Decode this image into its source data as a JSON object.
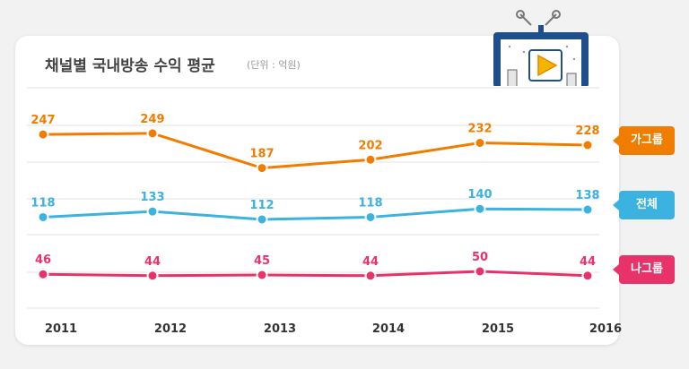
{
  "header": {
    "title": "채널별 국내방송 수익 평균",
    "unit_note": "(단위 : 억원)"
  },
  "icon": "tv-broadcast-icon",
  "chart_data": {
    "type": "line",
    "title": "채널별 국내방송 수익 평균",
    "subtitle": "(단위 : 억원)",
    "categories": [
      "2011",
      "2012",
      "2013",
      "2014",
      "2015",
      "2016"
    ],
    "series": [
      {
        "name": "가그룹",
        "color": "#f07d00",
        "values": [
          247,
          249,
          187,
          202,
          232,
          228
        ]
      },
      {
        "name": "전체",
        "color": "#3bb2e0",
        "values": [
          118,
          133,
          112,
          118,
          140,
          138
        ]
      },
      {
        "name": "나그룹",
        "color": "#e8336a",
        "values": [
          46,
          44,
          45,
          44,
          50,
          44
        ]
      }
    ],
    "grid": true,
    "legend": "right"
  }
}
